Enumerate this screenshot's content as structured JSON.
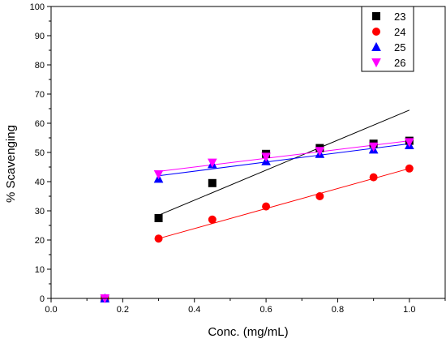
{
  "chart_data": {
    "type": "scatter",
    "xlabel": "Conc. (mg/mL)",
    "ylabel": "% Scavenging",
    "xlim": [
      0.0,
      1.1
    ],
    "ylim": [
      0,
      100
    ],
    "xticks": [
      0.0,
      0.2,
      0.4,
      0.6,
      0.8,
      1.0
    ],
    "xtick_labels": [
      "0.0",
      "0.2",
      "0.4",
      "0.6",
      "0.8",
      "1.0"
    ],
    "yticks": [
      0,
      10,
      20,
      30,
      40,
      50,
      60,
      70,
      80,
      90,
      100
    ],
    "ytick_labels": [
      "0",
      "10",
      "20",
      "30",
      "40",
      "50",
      "60",
      "70",
      "80",
      "90",
      "100"
    ],
    "grid": false,
    "legend": "top-right",
    "series": [
      {
        "name": "23",
        "marker": "square",
        "color": "#000000",
        "x": [
          0.15,
          0.3,
          0.45,
          0.6,
          0.75,
          0.9,
          1.0
        ],
        "y": [
          0,
          27.5,
          39.5,
          49.5,
          51.5,
          53,
          54
        ],
        "fit": {
          "x": [
            0.3,
            1.0
          ],
          "y": [
            28.5,
            64.5
          ]
        }
      },
      {
        "name": "24",
        "marker": "circle",
        "color": "#ff0000",
        "x": [
          0.15,
          0.3,
          0.45,
          0.6,
          0.75,
          0.9,
          1.0
        ],
        "y": [
          0,
          20.5,
          27,
          31.5,
          35,
          41.5,
          44.5
        ],
        "fit": {
          "x": [
            0.3,
            1.0
          ],
          "y": [
            20.5,
            44.5
          ]
        }
      },
      {
        "name": "25",
        "marker": "triangle-up",
        "color": "#0000ff",
        "x": [
          0.15,
          0.3,
          0.45,
          0.6,
          0.75,
          0.9,
          1.0
        ],
        "y": [
          0,
          41,
          46,
          47,
          49.5,
          51,
          52.5
        ],
        "fit": {
          "x": [
            0.3,
            1.0
          ],
          "y": [
            42,
            53
          ]
        }
      },
      {
        "name": "26",
        "marker": "triangle-down",
        "color": "#ff00ff",
        "x": [
          0.15,
          0.3,
          0.45,
          0.6,
          0.75,
          0.9,
          1.0
        ],
        "y": [
          0,
          42.5,
          46.5,
          48.5,
          50.5,
          52,
          53.5
        ],
        "fit": {
          "x": [
            0.3,
            1.0
          ],
          "y": [
            43.5,
            54
          ]
        }
      }
    ]
  }
}
